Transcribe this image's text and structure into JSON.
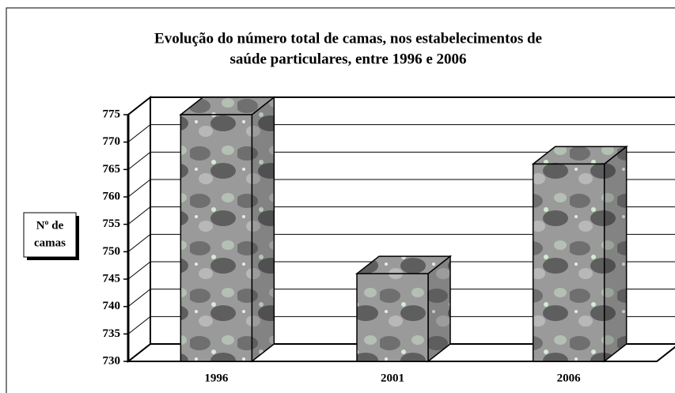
{
  "chart_data": {
    "type": "bar",
    "title": [
      "Evolução do número total de camas, nos estabelecimentos de",
      "saúde particulares, entre 1996 e 2006"
    ],
    "y_label": [
      "Nº de",
      "camas"
    ],
    "categories": [
      "1996",
      "2001",
      "2006"
    ],
    "values": [
      775,
      746,
      766
    ],
    "color": "#9a9a9a",
    "ylim": [
      730,
      775
    ],
    "yticks": [
      730,
      735,
      740,
      745,
      750,
      755,
      760,
      765,
      770,
      775
    ],
    "grid": true
  }
}
